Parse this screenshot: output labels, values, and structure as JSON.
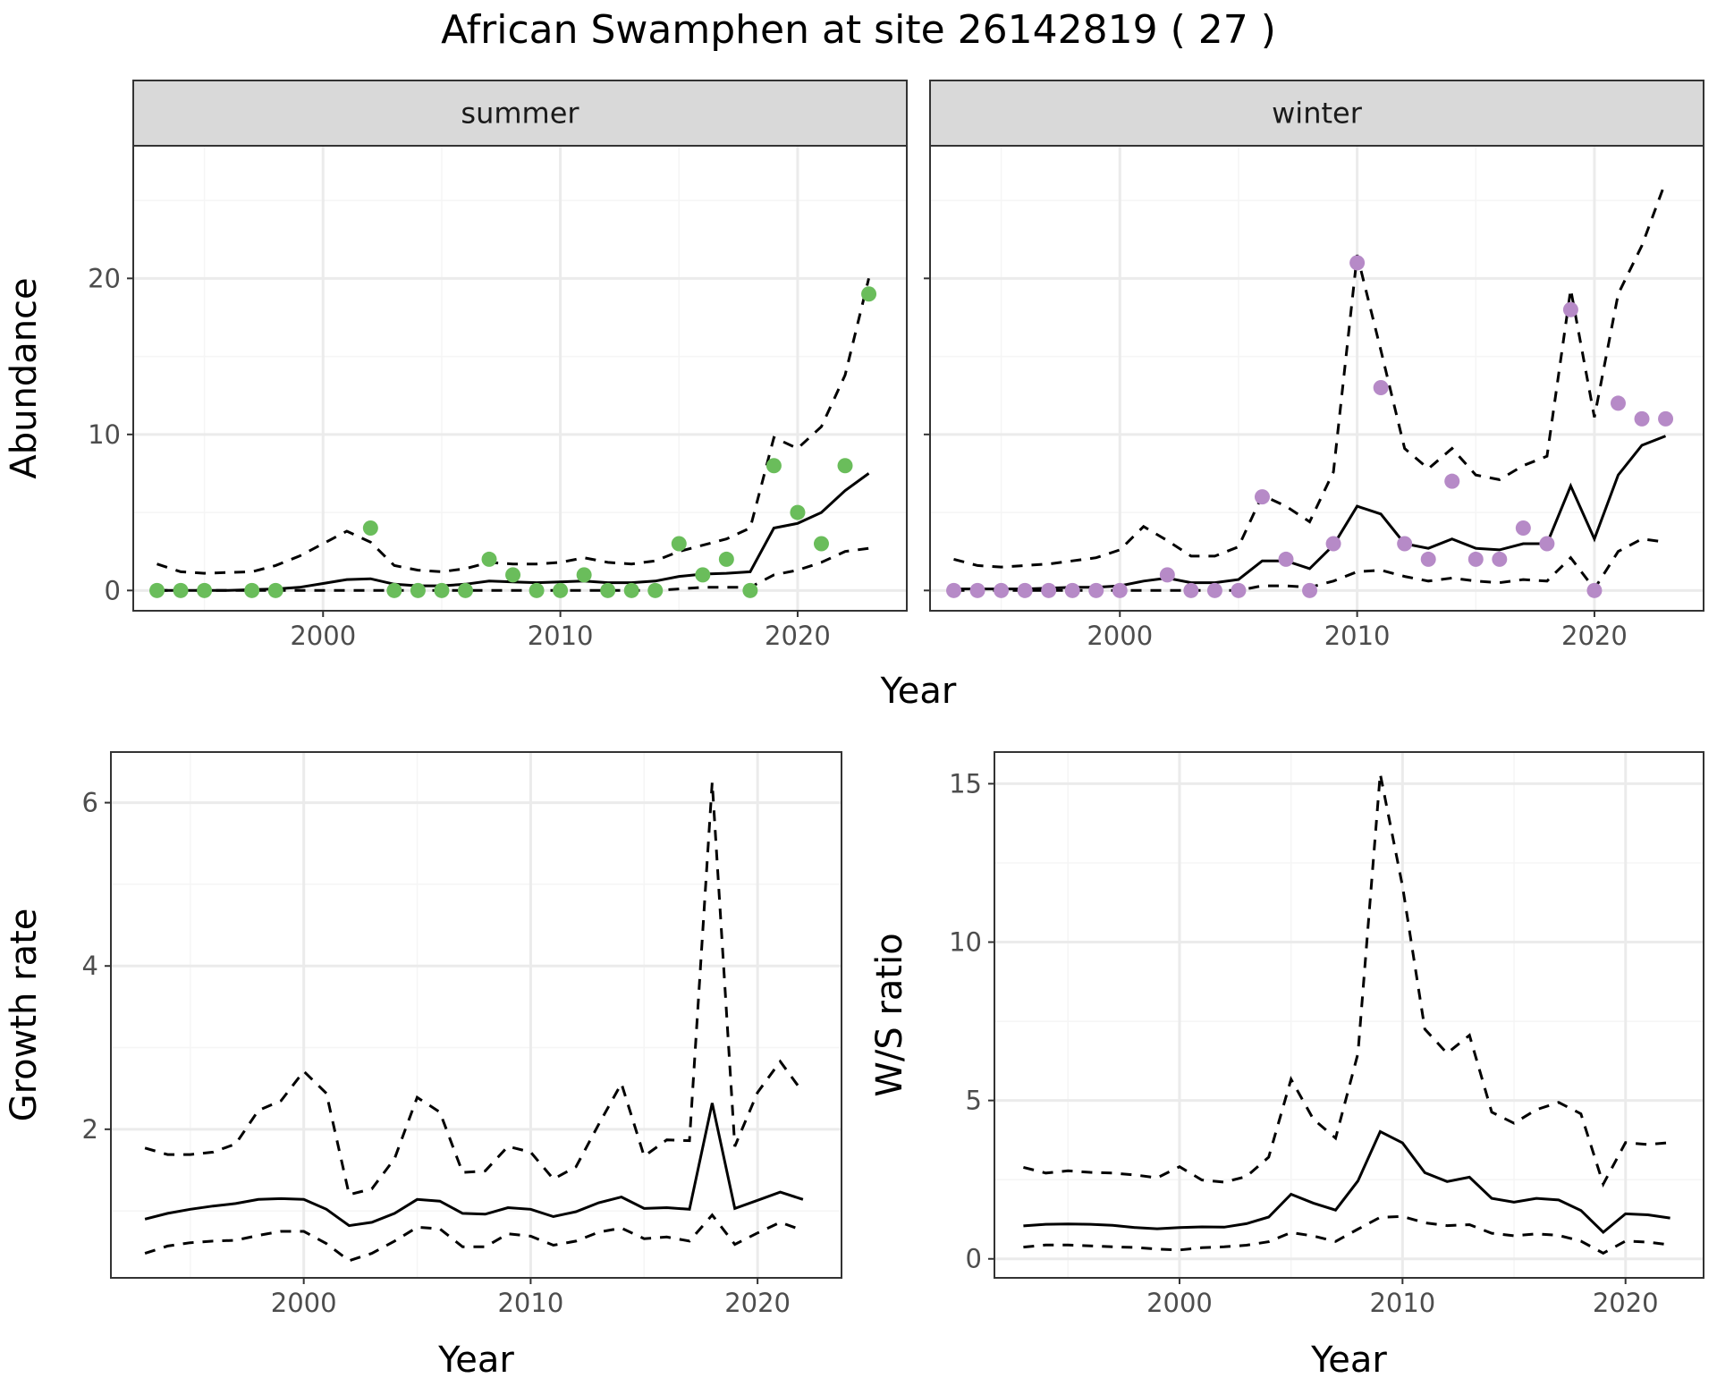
{
  "title": "African Swamphen at site 26142819 ( 27 )",
  "colors": {
    "summer": "#6abd5b",
    "winter": "#b68ac7",
    "line": "#000000",
    "grid_major": "#ebebeb",
    "grid_minor": "#f5f5f5",
    "strip_bg": "#d9d9d9",
    "border": "#333333"
  },
  "chart_data": [
    {
      "id": "summer",
      "type": "line",
      "strip": "summer",
      "xlabel": "",
      "ylabel": "Abundance",
      "xlim": [
        1992,
        2024.6
      ],
      "ylim": [
        -1.3,
        28.5
      ],
      "xticks": [
        2000,
        2010,
        2020
      ],
      "xtick_labels": [
        "2000",
        "2010",
        "2020"
      ],
      "yticks": [
        0,
        10,
        20
      ],
      "ytick_labels": [
        "0",
        "10",
        "20"
      ],
      "grid": true,
      "point_color": "#6abd5b",
      "x": [
        1993,
        1994,
        1995,
        1996,
        1997,
        1998,
        1999,
        2000,
        2001,
        2002,
        2003,
        2004,
        2005,
        2006,
        2007,
        2008,
        2009,
        2010,
        2011,
        2012,
        2013,
        2014,
        2015,
        2016,
        2017,
        2018,
        2019,
        2020,
        2021,
        2022,
        2023
      ],
      "points": [
        0,
        0,
        0,
        null,
        0,
        0,
        null,
        null,
        null,
        4,
        0,
        0,
        0,
        0,
        2,
        1,
        0,
        0,
        1,
        0,
        0,
        0,
        3,
        1,
        2,
        0,
        8,
        5,
        3,
        8,
        19
      ],
      "mean": [
        0,
        0,
        0,
        0,
        0.05,
        0.1,
        0.2,
        0.45,
        0.7,
        0.75,
        0.4,
        0.3,
        0.3,
        0.4,
        0.6,
        0.55,
        0.5,
        0.55,
        0.6,
        0.5,
        0.5,
        0.6,
        0.9,
        1.05,
        1.1,
        1.2,
        4.0,
        4.3,
        5.0,
        6.4,
        7.5
      ],
      "upper": [
        1.7,
        1.2,
        1.1,
        1.15,
        1.2,
        1.6,
        2.2,
        3.0,
        3.8,
        3.1,
        1.6,
        1.3,
        1.2,
        1.4,
        1.8,
        1.7,
        1.7,
        1.8,
        2.1,
        1.8,
        1.7,
        1.9,
        2.5,
        2.9,
        3.3,
        4.0,
        9.8,
        9.1,
        10.5,
        13.8,
        20.0
      ],
      "lower": [
        0,
        0,
        0,
        0,
        0,
        0,
        0,
        0,
        0,
        0,
        0,
        0,
        0,
        0,
        0,
        0,
        0,
        0,
        0,
        0,
        0,
        0,
        0.1,
        0.2,
        0.2,
        0.2,
        1.0,
        1.3,
        1.8,
        2.5,
        2.7
      ]
    },
    {
      "id": "winter",
      "type": "line",
      "strip": "winter",
      "xlabel": "",
      "ylabel": "",
      "xlim": [
        1992,
        2024.6
      ],
      "ylim": [
        -1.3,
        28.5
      ],
      "xticks": [
        2000,
        2010,
        2020
      ],
      "xtick_labels": [
        "2000",
        "2010",
        "2020"
      ],
      "yticks": [
        0,
        10,
        20
      ],
      "ytick_labels": [],
      "grid": true,
      "point_color": "#b68ac7",
      "x": [
        1993,
        1994,
        1995,
        1996,
        1997,
        1998,
        1999,
        2000,
        2001,
        2002,
        2003,
        2004,
        2005,
        2006,
        2007,
        2008,
        2009,
        2010,
        2011,
        2012,
        2013,
        2014,
        2015,
        2016,
        2017,
        2018,
        2019,
        2020,
        2021,
        2022,
        2023
      ],
      "points": [
        0,
        0,
        0,
        0,
        0,
        0,
        0,
        0,
        null,
        1,
        0,
        0,
        0,
        6,
        2,
        0,
        3,
        21,
        13,
        3,
        2,
        7,
        2,
        2,
        4,
        3,
        18,
        0,
        12,
        11,
        11
      ],
      "mean": [
        0.1,
        0.1,
        0.1,
        0.1,
        0.15,
        0.2,
        0.2,
        0.3,
        0.6,
        0.8,
        0.5,
        0.5,
        0.7,
        1.9,
        1.9,
        1.4,
        2.9,
        5.4,
        4.9,
        3.0,
        2.7,
        3.3,
        2.7,
        2.6,
        3.0,
        3.0,
        6.7,
        3.3,
        7.4,
        9.3,
        9.9
      ],
      "upper": [
        2.0,
        1.6,
        1.5,
        1.6,
        1.7,
        1.9,
        2.1,
        2.6,
        4.1,
        3.2,
        2.2,
        2.2,
        2.8,
        6.1,
        5.4,
        4.4,
        7.6,
        21.5,
        15.4,
        9.1,
        7.8,
        9.1,
        7.4,
        7.1,
        8.0,
        8.6,
        19.3,
        11.1,
        19.0,
        22.1,
        26.2
      ],
      "lower": [
        0,
        0,
        0,
        0,
        0,
        0,
        0,
        0,
        0,
        0,
        0,
        0,
        0,
        0.3,
        0.3,
        0.2,
        0.6,
        1.2,
        1.3,
        0.9,
        0.6,
        0.8,
        0.6,
        0.5,
        0.7,
        0.6,
        2.1,
        0.1,
        2.5,
        3.3,
        3.1
      ]
    },
    {
      "id": "growth",
      "type": "line",
      "xlabel": "Year",
      "ylabel": "Growth rate",
      "xlim": [
        1991.5,
        2023.7
      ],
      "ylim": [
        0.18,
        6.62
      ],
      "xticks": [
        2000,
        2010,
        2020
      ],
      "xtick_labels": [
        "2000",
        "2010",
        "2020"
      ],
      "yticks": [
        2,
        4,
        6
      ],
      "ytick_labels": [
        "2",
        "4",
        "6"
      ],
      "grid": true,
      "x": [
        1993,
        1994,
        1995,
        1996,
        1997,
        1998,
        1999,
        2000,
        2001,
        2002,
        2003,
        2004,
        2005,
        2006,
        2007,
        2008,
        2009,
        2010,
        2011,
        2012,
        2013,
        2014,
        2015,
        2016,
        2017,
        2018,
        2019,
        2020,
        2021,
        2022
      ],
      "mean": [
        0.9,
        0.97,
        1.02,
        1.06,
        1.09,
        1.14,
        1.15,
        1.14,
        1.02,
        0.82,
        0.86,
        0.97,
        1.14,
        1.12,
        0.97,
        0.96,
        1.04,
        1.02,
        0.93,
        0.99,
        1.1,
        1.17,
        1.03,
        1.04,
        1.02,
        2.32,
        1.03,
        1.13,
        1.23,
        1.14
      ],
      "upper": [
        1.77,
        1.69,
        1.69,
        1.72,
        1.82,
        2.23,
        2.35,
        2.71,
        2.44,
        1.2,
        1.27,
        1.64,
        2.39,
        2.21,
        1.47,
        1.49,
        1.79,
        1.72,
        1.39,
        1.54,
        2.06,
        2.56,
        1.67,
        1.87,
        1.86,
        6.25,
        1.79,
        2.45,
        2.83,
        2.45
      ],
      "lower": [
        0.48,
        0.57,
        0.61,
        0.63,
        0.64,
        0.7,
        0.75,
        0.75,
        0.6,
        0.39,
        0.48,
        0.63,
        0.8,
        0.78,
        0.56,
        0.56,
        0.72,
        0.69,
        0.58,
        0.63,
        0.74,
        0.79,
        0.66,
        0.68,
        0.63,
        0.95,
        0.59,
        0.73,
        0.86,
        0.76
      ]
    },
    {
      "id": "ws",
      "type": "line",
      "xlabel": "Year",
      "ylabel": "W/S ratio",
      "xlim": [
        1991.7,
        2023.5
      ],
      "ylim": [
        -0.6,
        16.0
      ],
      "xticks": [
        2000,
        2010,
        2020
      ],
      "xtick_labels": [
        "2000",
        "2010",
        "2020"
      ],
      "yticks": [
        0,
        5,
        10,
        15
      ],
      "ytick_labels": [
        "0",
        "5",
        "10",
        "15"
      ],
      "grid": true,
      "x": [
        1993,
        1994,
        1995,
        1996,
        1997,
        1998,
        1999,
        2000,
        2001,
        2002,
        2003,
        2004,
        2005,
        2006,
        2007,
        2008,
        2009,
        2010,
        2011,
        2012,
        2013,
        2014,
        2015,
        2016,
        2017,
        2018,
        2019,
        2020,
        2021,
        2022
      ],
      "mean": [
        1.04,
        1.09,
        1.1,
        1.09,
        1.06,
        0.99,
        0.95,
        0.99,
        1.01,
        1.0,
        1.11,
        1.32,
        2.04,
        1.76,
        1.54,
        2.46,
        4.02,
        3.66,
        2.72,
        2.44,
        2.58,
        1.91,
        1.79,
        1.91,
        1.86,
        1.53,
        0.84,
        1.42,
        1.39,
        1.29
      ],
      "upper": [
        2.89,
        2.71,
        2.78,
        2.73,
        2.71,
        2.65,
        2.56,
        2.91,
        2.49,
        2.42,
        2.6,
        3.21,
        5.67,
        4.41,
        3.81,
        6.48,
        15.31,
        11.77,
        7.25,
        6.49,
        7.06,
        4.63,
        4.28,
        4.71,
        4.94,
        4.58,
        2.36,
        3.67,
        3.61,
        3.67
      ],
      "lower": [
        0.37,
        0.44,
        0.44,
        0.41,
        0.38,
        0.36,
        0.31,
        0.28,
        0.35,
        0.38,
        0.43,
        0.54,
        0.83,
        0.72,
        0.55,
        0.94,
        1.31,
        1.34,
        1.14,
        1.05,
        1.08,
        0.81,
        0.73,
        0.79,
        0.74,
        0.56,
        0.18,
        0.56,
        0.53,
        0.44
      ]
    }
  ]
}
